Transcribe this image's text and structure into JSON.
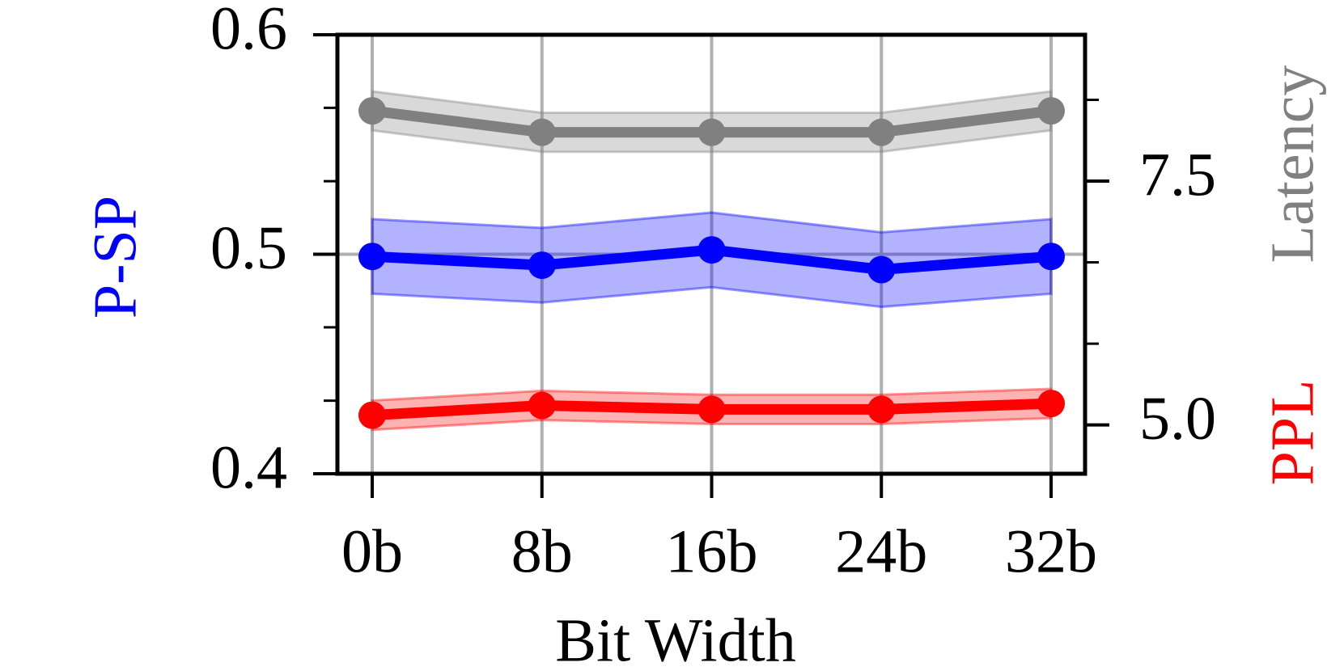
{
  "chart_data": {
    "type": "line",
    "xlabel": "Bit Width",
    "ylabel": "P-SP",
    "y2labels": [
      {
        "text": "PPL",
        "color": "#ff0000"
      },
      {
        "text": "Latency",
        "color": "#808080"
      }
    ],
    "categories": [
      "0b",
      "8b",
      "16b",
      "24b",
      "32b"
    ],
    "series": [
      {
        "name": "Latency",
        "color": "#808080",
        "axis": "y2",
        "values": [
          8.22,
          8.0,
          8.0,
          8.0,
          8.22
        ],
        "errors": [
          0.2,
          0.2,
          0.2,
          0.2,
          0.2
        ]
      },
      {
        "name": "P-SP",
        "color": "#0000ff",
        "values": [
          0.499,
          0.495,
          0.502,
          0.493,
          0.499
        ],
        "errors": [
          0.017,
          0.017,
          0.017,
          0.017,
          0.017
        ]
      },
      {
        "name": "PPL",
        "color": "#ff0000",
        "axis": "y2",
        "values": [
          5.1,
          5.2,
          5.16,
          5.16,
          5.22
        ],
        "errors": [
          0.15,
          0.15,
          0.15,
          0.15,
          0.15
        ]
      }
    ],
    "ylim": [
      0.4,
      0.6
    ],
    "yticks": [
      0.4,
      0.5,
      0.6
    ],
    "yminorticks": [
      0.4333,
      0.4667,
      0.5333,
      0.5667
    ],
    "y2lim": [
      4.5,
      9.0
    ],
    "y2ticks": [
      {
        "value": 5.0,
        "label": "5.0"
      },
      7.5
    ],
    "y2minorticks": [
      5.8333,
      6.6667,
      8.3333
    ],
    "grid": true
  }
}
